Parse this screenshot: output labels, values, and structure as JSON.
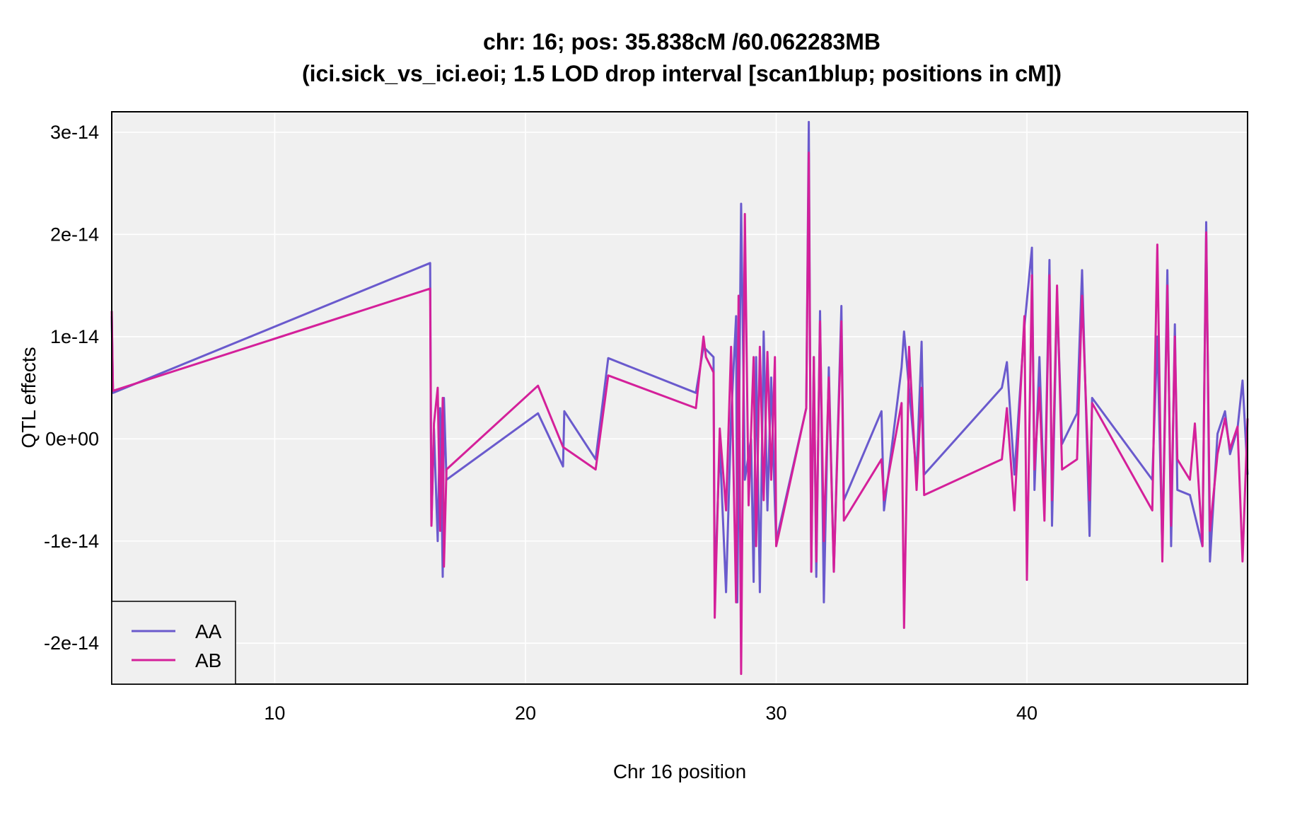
{
  "chart_data": {
    "type": "line",
    "title": "chr: 16; pos: 35.838cM /60.062283MB",
    "subtitle": "(ici.sick_vs_ici.eoi; 1.5 LOD drop interval [scan1blup; positions in cM])",
    "xlabel": "Chr 16 position",
    "ylabel": "QTL effects",
    "xlim": [
      3.5,
      48.8
    ],
    "ylim": [
      -2.4e-14,
      3.2e-14
    ],
    "x_ticks": [
      10,
      20,
      30,
      40
    ],
    "x_tick_labels": [
      "10",
      "20",
      "30",
      "40"
    ],
    "y_ticks": [
      -2e-14,
      -1e-14,
      0,
      1e-14,
      2e-14,
      3e-14
    ],
    "y_tick_labels": [
      "-2e-14",
      "-1e-14",
      "0e+00",
      "1e-14",
      "2e-14",
      "3e-14"
    ],
    "grid": true,
    "background": "#f0f0f0",
    "legend": {
      "position": "bottom-left",
      "entries": [
        "AA",
        "AB"
      ]
    },
    "series": [
      {
        "name": "AA",
        "color": "#6a5acd",
        "points": [
          [
            3.5,
            1.2e-14
          ],
          [
            3.55,
            4.5e-15
          ],
          [
            16.2,
            1.72e-14
          ],
          [
            16.25,
            -8.5e-15
          ],
          [
            16.35,
            1e-15
          ],
          [
            16.5,
            -1e-14
          ],
          [
            16.6,
            3e-15
          ],
          [
            16.7,
            -1.35e-14
          ],
          [
            16.75,
            4e-15
          ],
          [
            16.85,
            -4e-15
          ],
          [
            20.5,
            2.5e-15
          ],
          [
            21.5,
            -2.7e-15
          ],
          [
            21.55,
            2.7e-15
          ],
          [
            22.8,
            -2e-15
          ],
          [
            23.3,
            7.9e-15
          ],
          [
            26.8,
            4.5e-15
          ],
          [
            27.1,
            9e-15
          ],
          [
            27.5,
            8e-15
          ],
          [
            27.55,
            -1.5e-14
          ],
          [
            27.75,
            -5e-16
          ],
          [
            28.0,
            -1.5e-14
          ],
          [
            28.2,
            2e-15
          ],
          [
            28.4,
            1.2e-14
          ],
          [
            28.45,
            -1.6e-14
          ],
          [
            28.6,
            2.3e-14
          ],
          [
            28.75,
            -4e-15
          ],
          [
            29.0,
            0.0
          ],
          [
            29.1,
            -1.4e-14
          ],
          [
            29.2,
            8e-15
          ],
          [
            29.35,
            -1.5e-14
          ],
          [
            29.5,
            1.05e-14
          ],
          [
            29.65,
            -7e-15
          ],
          [
            29.8,
            6e-15
          ],
          [
            29.95,
            -6.5e-15
          ],
          [
            30.0,
            -1e-14
          ],
          [
            31.2,
            3e-15
          ],
          [
            31.3,
            3.1e-14
          ],
          [
            31.4,
            -1.3e-14
          ],
          [
            31.5,
            8e-15
          ],
          [
            31.6,
            -1.35e-14
          ],
          [
            31.75,
            1.25e-14
          ],
          [
            31.9,
            -1.6e-14
          ],
          [
            32.1,
            7e-15
          ],
          [
            32.3,
            -1.3e-14
          ],
          [
            32.6,
            1.3e-14
          ],
          [
            32.7,
            -6e-15
          ],
          [
            34.2,
            2.7e-15
          ],
          [
            34.3,
            -7e-15
          ],
          [
            35.0,
            7e-15
          ],
          [
            35.1,
            1.05e-14
          ],
          [
            35.6,
            -3.5e-15
          ],
          [
            35.8,
            9.5e-15
          ],
          [
            35.9,
            -3.5e-15
          ],
          [
            39.0,
            5e-15
          ],
          [
            39.2,
            7.5e-15
          ],
          [
            39.5,
            -3.5e-15
          ],
          [
            39.9,
            1.1e-14
          ],
          [
            40.2,
            1.87e-14
          ],
          [
            40.3,
            -5e-15
          ],
          [
            40.5,
            8e-15
          ],
          [
            40.7,
            -7e-15
          ],
          [
            40.9,
            1.75e-14
          ],
          [
            41.0,
            -8.5e-15
          ],
          [
            41.2,
            1.4e-14
          ],
          [
            41.4,
            -5e-16
          ],
          [
            42.0,
            2.5e-15
          ],
          [
            42.2,
            1.65e-14
          ],
          [
            42.5,
            -9.5e-15
          ],
          [
            42.6,
            4e-15
          ],
          [
            45.0,
            -4e-15
          ],
          [
            45.2,
            1e-14
          ],
          [
            45.4,
            -1.1e-14
          ],
          [
            45.6,
            1.65e-14
          ],
          [
            45.75,
            -1.05e-14
          ],
          [
            45.9,
            1.12e-14
          ],
          [
            46.0,
            -5e-15
          ],
          [
            46.5,
            -5.5e-15
          ],
          [
            47.0,
            -1.05e-14
          ],
          [
            47.15,
            2.12e-14
          ],
          [
            47.3,
            -1.2e-14
          ],
          [
            47.6,
            5e-16
          ],
          [
            47.9,
            2.7e-15
          ],
          [
            48.1,
            -1.5e-15
          ],
          [
            48.4,
            1e-15
          ],
          [
            48.6,
            5.7e-15
          ],
          [
            48.8,
            -3.5e-15
          ]
        ]
      },
      {
        "name": "AB",
        "color": "#d4209a",
        "points": [
          [
            3.5,
            1.25e-14
          ],
          [
            3.55,
            4.7e-15
          ],
          [
            16.2,
            1.47e-14
          ],
          [
            16.25,
            -8.5e-15
          ],
          [
            16.35,
            1.5e-15
          ],
          [
            16.5,
            5e-15
          ],
          [
            16.6,
            -9e-15
          ],
          [
            16.7,
            4e-15
          ],
          [
            16.75,
            -1.25e-14
          ],
          [
            16.85,
            -3e-15
          ],
          [
            20.5,
            5.2e-15
          ],
          [
            21.5,
            -8e-16
          ],
          [
            22.8,
            -3e-15
          ],
          [
            23.3,
            6.2e-15
          ],
          [
            26.8,
            3e-15
          ],
          [
            27.1,
            1e-14
          ],
          [
            27.2,
            8e-15
          ],
          [
            27.5,
            6.5e-15
          ],
          [
            27.55,
            -1.75e-14
          ],
          [
            27.75,
            1e-15
          ],
          [
            28.0,
            -7e-15
          ],
          [
            28.2,
            9e-15
          ],
          [
            28.4,
            -1.6e-14
          ],
          [
            28.5,
            1.4e-14
          ],
          [
            28.6,
            -2.3e-14
          ],
          [
            28.75,
            2.2e-14
          ],
          [
            28.9,
            -6.5e-15
          ],
          [
            29.1,
            8e-15
          ],
          [
            29.2,
            -1.05e-14
          ],
          [
            29.35,
            9e-15
          ],
          [
            29.5,
            -6e-15
          ],
          [
            29.65,
            8.5e-15
          ],
          [
            29.8,
            -4e-15
          ],
          [
            29.95,
            8e-15
          ],
          [
            30.0,
            -1.05e-14
          ],
          [
            31.2,
            3e-15
          ],
          [
            31.3,
            2.8e-14
          ],
          [
            31.4,
            -1.3e-14
          ],
          [
            31.5,
            8e-15
          ],
          [
            31.6,
            -1.2e-14
          ],
          [
            31.75,
            1.15e-14
          ],
          [
            31.9,
            -1e-14
          ],
          [
            32.1,
            6e-15
          ],
          [
            32.3,
            -1.3e-14
          ],
          [
            32.6,
            1.15e-14
          ],
          [
            32.7,
            -8e-15
          ],
          [
            34.2,
            -2e-15
          ],
          [
            34.3,
            -6e-15
          ],
          [
            35.0,
            3.5e-15
          ],
          [
            35.1,
            -1.85e-14
          ],
          [
            35.3,
            9e-15
          ],
          [
            35.6,
            -5e-15
          ],
          [
            35.8,
            5e-15
          ],
          [
            35.9,
            -5.5e-15
          ],
          [
            39.0,
            -2e-15
          ],
          [
            39.2,
            3e-15
          ],
          [
            39.5,
            -7e-15
          ],
          [
            39.9,
            1.2e-14
          ],
          [
            40.0,
            -1.38e-14
          ],
          [
            40.2,
            1.6e-14
          ],
          [
            40.3,
            -3e-15
          ],
          [
            40.5,
            5e-15
          ],
          [
            40.7,
            -8e-15
          ],
          [
            40.9,
            1.6e-14
          ],
          [
            41.0,
            -6e-15
          ],
          [
            41.2,
            1.5e-14
          ],
          [
            41.4,
            -3e-15
          ],
          [
            42.0,
            -2e-15
          ],
          [
            42.2,
            1.4e-14
          ],
          [
            42.5,
            -6e-15
          ],
          [
            42.6,
            3.5e-15
          ],
          [
            45.0,
            -7e-15
          ],
          [
            45.2,
            1.9e-14
          ],
          [
            45.4,
            -1.2e-14
          ],
          [
            45.6,
            1.5e-14
          ],
          [
            45.75,
            -8.5e-15
          ],
          [
            45.9,
            1e-14
          ],
          [
            46.0,
            -2e-15
          ],
          [
            46.5,
            -4e-15
          ],
          [
            46.7,
            1.5e-15
          ],
          [
            47.0,
            -1.05e-14
          ],
          [
            47.15,
            2.02e-14
          ],
          [
            47.3,
            -9e-15
          ],
          [
            47.6,
            -1.5e-15
          ],
          [
            47.9,
            2e-15
          ],
          [
            48.1,
            -1e-15
          ],
          [
            48.4,
            1.2e-15
          ],
          [
            48.6,
            -1.2e-14
          ],
          [
            48.8,
            2e-15
          ]
        ]
      }
    ]
  }
}
